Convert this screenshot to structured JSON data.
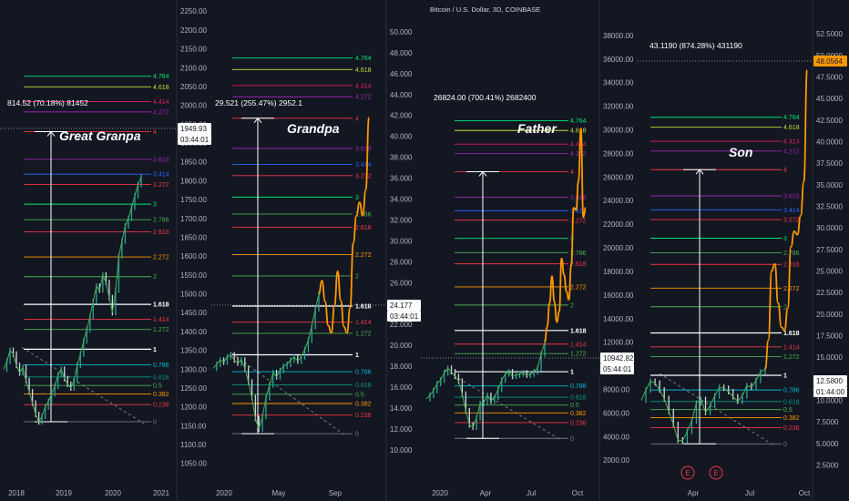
{
  "header": "Bitcoin / U.S. Dollar, 3D, COINBASE",
  "fib_levels": [
    {
      "label": "0",
      "ratio": 0,
      "color": "#787b86"
    },
    {
      "label": "0.236",
      "ratio": 0.236,
      "color": "#f23645"
    },
    {
      "label": "0.382",
      "ratio": 0.382,
      "color": "#ff9800"
    },
    {
      "label": "0.5",
      "ratio": 0.5,
      "color": "#4caf50"
    },
    {
      "label": "0.618",
      "ratio": 0.618,
      "color": "#089981"
    },
    {
      "label": "0.786",
      "ratio": 0.786,
      "color": "#00bcd4"
    },
    {
      "label": "1",
      "ratio": 1,
      "color": "#ffffff"
    },
    {
      "label": "1.272",
      "ratio": 1.272,
      "color": "#4caf50"
    },
    {
      "label": "1.414",
      "ratio": 1.414,
      "color": "#f23645"
    },
    {
      "label": "1.618",
      "ratio": 1.618,
      "color": "#ffffff"
    },
    {
      "label": "2",
      "ratio": 2,
      "color": "#4caf50"
    },
    {
      "label": "2.272",
      "ratio": 2.272,
      "color": "#ff9800"
    },
    {
      "label": "2.618",
      "ratio": 2.618,
      "color": "#f23645"
    },
    {
      "label": "2.786",
      "ratio": 2.786,
      "color": "#4caf50"
    },
    {
      "label": "3",
      "ratio": 3,
      "color": "#00e676"
    },
    {
      "label": "3.272",
      "ratio": 3.272,
      "color": "#f23645"
    },
    {
      "label": "3.414",
      "ratio": 3.414,
      "color": "#2962ff"
    },
    {
      "label": "3.618",
      "ratio": 3.618,
      "color": "#9c27b0"
    },
    {
      "label": "4",
      "ratio": 4,
      "color": "#f23645"
    },
    {
      "label": "4.272",
      "ratio": 4.272,
      "color": "#9c27b0"
    },
    {
      "label": "4.414",
      "ratio": 4.414,
      "color": "#e91e63"
    },
    {
      "label": "4.618",
      "ratio": 4.618,
      "color": "#cddc39"
    },
    {
      "label": "4.764",
      "ratio": 4.764,
      "color": "#00e676"
    }
  ],
  "chart_data": [
    {
      "type": "line",
      "title": "Great Granpa",
      "range_label": "814.52 (70.18%) 81452",
      "y_ticks": [
        "2250.00",
        "2200.00",
        "2150.00",
        "2100.00",
        "2050.00",
        "2000.00",
        "1950.00",
        "1900.00",
        "1850.00",
        "1800.00",
        "1750.00",
        "1700.00",
        "1650.00",
        "1600.00",
        "1550.00",
        "1500.00",
        "1450.00",
        "1400.00",
        "1350.00",
        "1300.00",
        "1250.00",
        "1200.00",
        "1150.00",
        "1100.00",
        "1050.00"
      ],
      "ylim": [
        1030,
        2265
      ],
      "x_ticks": [
        "2018",
        "2019",
        "2020",
        "2021"
      ],
      "price_tag": "1949.93",
      "countdown": "03:44:01",
      "fib_base": 1160.6,
      "fib_top": 1353,
      "close_path": [
        1300,
        1320,
        1350,
        1340,
        1310,
        1290,
        1305,
        1270,
        1240,
        1210,
        1180,
        1160,
        1175,
        1200,
        1215,
        1235,
        1255,
        1285,
        1300,
        1275,
        1260,
        1250,
        1270,
        1310,
        1340,
        1375,
        1405,
        1440,
        1480,
        1520,
        1510,
        1550,
        1530,
        1490,
        1450,
        1510,
        1600,
        1640,
        1680,
        1700,
        1730,
        1760,
        1790,
        1810
      ]
    },
    {
      "type": "line",
      "title": "Grandpa",
      "range_label": "29.521 (255.47%) 2952.1",
      "y_ticks": [
        "50.000",
        "48.000",
        "46.000",
        "44.000",
        "42.000",
        "40.000",
        "38.000",
        "36.000",
        "34.000",
        "32.000",
        "30.000",
        "28.000",
        "26.000",
        "24.000",
        "22.000",
        "20.000",
        "18.000",
        "16.000",
        "14.000",
        "12.000",
        "10.000"
      ],
      "ylim": [
        8.6,
        51.3
      ],
      "x_ticks": [
        "2020",
        "May",
        "Sep"
      ],
      "price_tag": "24.177",
      "countdown": "03:44:01",
      "fib_base": 11.556,
      "fib_top": 19.1,
      "close_path": [
        17.8,
        18.2,
        18.6,
        18.4,
        18.9,
        19.1,
        18.6,
        18.3,
        18.6,
        17.8,
        16.5,
        15,
        13,
        12,
        13.2,
        15,
        16.2,
        17.4,
        17,
        17.6,
        18,
        18.2,
        18.6,
        18.9,
        18.5,
        18.9,
        19.6,
        20.5,
        21.8,
        23.5,
        24.9
      ],
      "projection": [
        24.9,
        26.2,
        24.2,
        21.9,
        21.2,
        23.8,
        27.1,
        24.3,
        21.8,
        21.2,
        23.6,
        29.8,
        32.4,
        33.7,
        32.4,
        34.9,
        41.8
      ]
    },
    {
      "type": "line",
      "title": "Father",
      "range_label": "26824.00 (700.41%) 2682400",
      "y_ticks": [
        "38000.00",
        "36000.00",
        "34000.00",
        "32000.00",
        "30000.00",
        "28000.00",
        "26000.00",
        "24000.00",
        "22000.00",
        "20000.00",
        "18000.00",
        "16000.00",
        "14000.00",
        "12000.00",
        "10000.00",
        "8000.00",
        "6000.00",
        "4000.00",
        "2000.00"
      ],
      "ylim": [
        1400,
        39300
      ],
      "x_ticks": [
        "2020",
        "Apr",
        "Jul",
        "Oct"
      ],
      "price_tag": "10942.82",
      "countdown": "05:44:01",
      "fib_base": 3850,
      "fib_top": 9500,
      "close_path": [
        7200,
        7500,
        7900,
        8500,
        8800,
        9400,
        9800,
        9500,
        9100,
        8700,
        7600,
        6200,
        5000,
        4800,
        5600,
        6800,
        6900,
        7500,
        7000,
        7300,
        8000,
        8800,
        9300,
        9500,
        9100,
        9200,
        9300,
        9400,
        9200,
        9300,
        9500,
        9800,
        11000,
        12000
      ],
      "projection": [
        12000,
        13300,
        15300,
        17600,
        15400,
        13700,
        14600,
        19100,
        17700,
        16300,
        15600,
        18600,
        23400,
        23200,
        25700,
        30100,
        22600,
        23400
      ]
    },
    {
      "type": "line",
      "title": "Son",
      "range_label": "43.1190 (874.28%) 431190",
      "y_ticks": [
        "52.5000",
        "50.0000",
        "47.5000",
        "45.0000",
        "42.5000",
        "40.0000",
        "37.5000",
        "35.0000",
        "32.5000",
        "30.0000",
        "27.5000",
        "25.0000",
        "22.5000",
        "20.0000",
        "17.5000",
        "15.0000",
        "12.5000",
        "10.0000",
        "7.5000",
        "5.0000",
        "2.5000"
      ],
      "ylim": [
        1.6,
        54.2
      ],
      "x_ticks": [
        "Apr",
        "Jul",
        "Oct"
      ],
      "price_tag": "48.0564",
      "price_tag_2": "12.5800",
      "countdown": "01:44:00",
      "event_markers": [
        "E",
        "E"
      ],
      "fib_base": 4.951,
      "fib_top": 12.9,
      "close_path": [
        10,
        11.2,
        12.2,
        12,
        11.2,
        10.2,
        8.7,
        7.2,
        5.4,
        5.3,
        6.4,
        7.6,
        9.7,
        10.1,
        8.6,
        9.4,
        10.5,
        11.5,
        11.4,
        11,
        10.4,
        9.9,
        10.5,
        11.7,
        11.5,
        12.3,
        13.3,
        13.6
      ],
      "projection": [
        13.6,
        17,
        25,
        25.8,
        21.3,
        18.5,
        18.1,
        20.7,
        27.8,
        29.6,
        29.2,
        31.4,
        35.4,
        48.3
      ]
    }
  ]
}
